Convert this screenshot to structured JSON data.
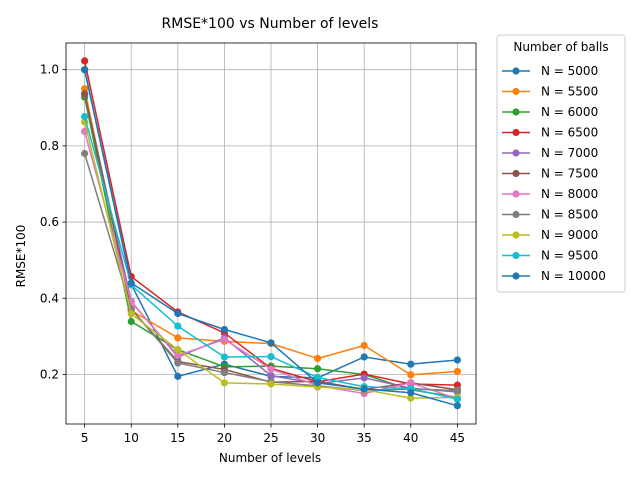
{
  "chart_data": {
    "type": "line",
    "title": "RMSE*100 vs Number of levels",
    "xlabel": "Number of levels",
    "ylabel": "RMSE*100",
    "x": [
      5,
      10,
      15,
      20,
      25,
      30,
      35,
      40,
      45
    ],
    "x_ticks": [
      5,
      10,
      15,
      20,
      25,
      30,
      35,
      40,
      45
    ],
    "y_ticks": [
      0.2,
      0.4,
      0.6,
      0.8,
      1.0
    ],
    "y_tick_labels": [
      "0.2",
      "0.4",
      "0.6",
      "0.8",
      "1.0"
    ],
    "xlim": [
      3.0,
      47.0
    ],
    "ylim": [
      0.07,
      1.07
    ],
    "grid": true,
    "legend": {
      "title": "Number of balls",
      "placement": "outside-right"
    },
    "series": [
      {
        "name": "N = 5000",
        "color": "#1f77b4",
        "values": [
          1.0,
          0.437,
          0.195,
          0.227,
          0.195,
          0.191,
          0.246,
          0.227,
          0.238
        ]
      },
      {
        "name": "N = 5500",
        "color": "#ff7f0e",
        "values": [
          0.95,
          0.368,
          0.296,
          0.287,
          0.281,
          0.242,
          0.276,
          0.199,
          0.208
        ]
      },
      {
        "name": "N = 6000",
        "color": "#2ca02c",
        "values": [
          0.928,
          0.339,
          0.265,
          0.22,
          0.222,
          0.215,
          0.2,
          0.16,
          0.14
        ]
      },
      {
        "name": "N = 6500",
        "color": "#d62728",
        "values": [
          1.023,
          0.457,
          0.364,
          0.309,
          0.216,
          0.181,
          0.201,
          0.175,
          0.172
        ]
      },
      {
        "name": "N = 7000",
        "color": "#9467bd",
        "values": [
          0.935,
          0.392,
          0.246,
          0.296,
          0.197,
          0.176,
          0.191,
          0.164,
          0.154
        ]
      },
      {
        "name": "N = 7500",
        "color": "#8c564b",
        "values": [
          0.937,
          0.372,
          0.234,
          0.213,
          0.18,
          0.182,
          0.161,
          0.178,
          0.16
        ]
      },
      {
        "name": "N = 8000",
        "color": "#e377c2",
        "values": [
          0.838,
          0.39,
          0.25,
          0.292,
          0.214,
          0.171,
          0.15,
          0.178,
          0.136
        ]
      },
      {
        "name": "N = 8500",
        "color": "#7f7f7f",
        "values": [
          0.78,
          0.371,
          0.23,
          0.205,
          0.181,
          0.17,
          0.158,
          0.162,
          0.158
        ]
      },
      {
        "name": "N = 9000",
        "color": "#bcbd22",
        "values": [
          0.863,
          0.359,
          0.265,
          0.178,
          0.175,
          0.167,
          0.16,
          0.138,
          0.14
        ]
      },
      {
        "name": "N = 9500",
        "color": "#17becf",
        "values": [
          0.877,
          0.435,
          0.327,
          0.246,
          0.247,
          0.192,
          0.168,
          0.163,
          0.135
        ]
      },
      {
        "name": "N = 10000",
        "color": "#1f77b4",
        "values": [
          1.0,
          0.44,
          0.36,
          0.318,
          0.283,
          0.178,
          0.162,
          0.152,
          0.118
        ]
      }
    ]
  }
}
